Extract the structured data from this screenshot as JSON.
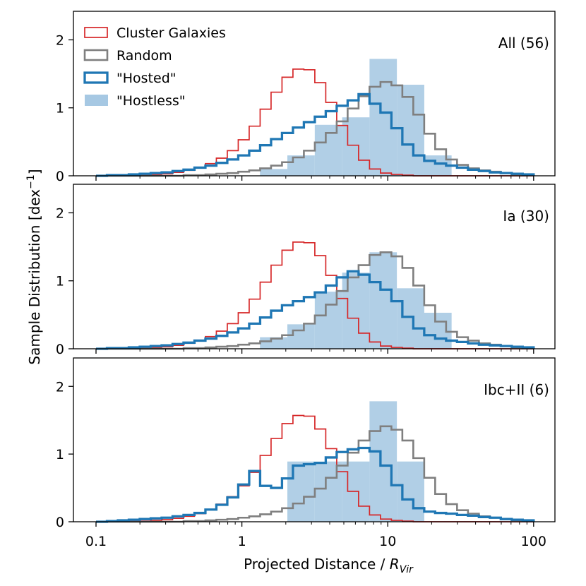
{
  "chart_data": {
    "type": "step-histogram",
    "xscale": "log",
    "xlim": [
      0.07,
      140
    ],
    "xlabel": "Projected Distance / ",
    "xlabel_sym": "R",
    "xlabel_sub": "Vir",
    "ylabel": "Sample Distribution [dex",
    "ylabel_sup": "−1",
    "ylabel_close": "]",
    "xticks": [
      0.1,
      1,
      10,
      100
    ],
    "xtick_labels": [
      "0.1",
      "1",
      "10",
      "100"
    ],
    "yticks": [
      0,
      1,
      2
    ],
    "ytick_labels": [
      "0",
      "1",
      "2"
    ],
    "ylim": [
      0,
      2.42
    ],
    "legend": {
      "position": "top-left",
      "entries": [
        {
          "label": "Cluster Galaxies",
          "style": "outline",
          "color": "#d62728"
        },
        {
          "label": "Random",
          "style": "outline",
          "color": "#7f7f7f"
        },
        {
          "label": "\"Hosted\"",
          "style": "outline-thick",
          "color": "#1f77b4"
        },
        {
          "label": "\"Hostless\"",
          "style": "fill",
          "color": "#a6c8e3"
        }
      ]
    },
    "colors": {
      "cluster": "#d62728",
      "random": "#7f7f7f",
      "hosted": "#1f77b4",
      "hostless": "#a6c8e3"
    },
    "panels": [
      {
        "label": "All (56)",
        "hostless": {
          "edges": [
            1.33,
            2.05,
            3.16,
            4.87,
            7.5,
            11.55,
            17.8,
            27.4
          ],
          "values": [
            0.1,
            0.3,
            0.75,
            0.86,
            1.72,
            1.34,
            0.3
          ]
        },
        "cluster": [
          0.0,
          0.0,
          0.0,
          0.01,
          0.01,
          0.02,
          0.03,
          0.05,
          0.08,
          0.12,
          0.18,
          0.26,
          0.37,
          0.53,
          0.73,
          0.98,
          1.23,
          1.45,
          1.57,
          1.56,
          1.37,
          1.08,
          0.74,
          0.45,
          0.23,
          0.1,
          0.04,
          0.02,
          0.01,
          0.0,
          0.0,
          0.0,
          0.0,
          0.0,
          0.0,
          0.0,
          0.0,
          0.0,
          0.0,
          0.0
        ],
        "random": [
          0.0,
          0.0,
          0.0,
          0.0,
          0.0,
          0.0,
          0.0,
          0.0,
          0.01,
          0.01,
          0.02,
          0.03,
          0.04,
          0.06,
          0.08,
          0.11,
          0.15,
          0.2,
          0.27,
          0.37,
          0.49,
          0.63,
          0.8,
          0.99,
          1.17,
          1.31,
          1.38,
          1.33,
          1.16,
          0.9,
          0.62,
          0.39,
          0.24,
          0.16,
          0.11,
          0.08,
          0.06,
          0.04,
          0.02,
          0.01
        ],
        "hosted": [
          0.0,
          0.01,
          0.01,
          0.02,
          0.03,
          0.04,
          0.05,
          0.07,
          0.09,
          0.12,
          0.15,
          0.19,
          0.24,
          0.3,
          0.37,
          0.45,
          0.54,
          0.63,
          0.71,
          0.79,
          0.87,
          0.95,
          1.03,
          1.11,
          1.2,
          1.06,
          0.93,
          0.7,
          0.46,
          0.3,
          0.22,
          0.18,
          0.15,
          0.12,
          0.09,
          0.07,
          0.05,
          0.04,
          0.03,
          0.02
        ]
      },
      {
        "label": "Ia (30)",
        "hostless": {
          "edges": [
            1.33,
            2.05,
            3.16,
            4.87,
            7.5,
            11.55,
            17.8,
            27.4
          ],
          "values": [
            0.17,
            0.36,
            0.84,
            1.12,
            1.42,
            0.89,
            0.53
          ]
        },
        "cluster": [
          0.0,
          0.0,
          0.0,
          0.01,
          0.01,
          0.02,
          0.03,
          0.05,
          0.08,
          0.12,
          0.18,
          0.26,
          0.37,
          0.53,
          0.73,
          0.98,
          1.23,
          1.45,
          1.57,
          1.56,
          1.37,
          1.08,
          0.74,
          0.45,
          0.23,
          0.1,
          0.04,
          0.02,
          0.01,
          0.0,
          0.0,
          0.0,
          0.0,
          0.0,
          0.0,
          0.0,
          0.0,
          0.0,
          0.0,
          0.0
        ],
        "random": [
          0.0,
          0.0,
          0.0,
          0.0,
          0.0,
          0.0,
          0.0,
          0.0,
          0.01,
          0.01,
          0.02,
          0.03,
          0.04,
          0.06,
          0.08,
          0.11,
          0.15,
          0.2,
          0.27,
          0.37,
          0.49,
          0.65,
          0.85,
          1.05,
          1.23,
          1.38,
          1.42,
          1.36,
          1.19,
          0.93,
          0.64,
          0.4,
          0.25,
          0.17,
          0.12,
          0.08,
          0.06,
          0.04,
          0.02,
          0.01
        ],
        "hosted": [
          0.0,
          0.01,
          0.01,
          0.02,
          0.03,
          0.04,
          0.05,
          0.07,
          0.09,
          0.12,
          0.15,
          0.19,
          0.24,
          0.3,
          0.37,
          0.46,
          0.56,
          0.64,
          0.7,
          0.76,
          0.83,
          0.93,
          1.05,
          1.14,
          1.09,
          0.98,
          0.87,
          0.7,
          0.47,
          0.3,
          0.2,
          0.15,
          0.12,
          0.1,
          0.08,
          0.06,
          0.05,
          0.04,
          0.03,
          0.02
        ]
      },
      {
        "label": "Ibc+II (6)",
        "hostless": {
          "edges": [
            2.05,
            3.16,
            4.87,
            7.5,
            11.55,
            17.8
          ],
          "values": [
            0.89,
            0.89,
            0.89,
            1.78,
            0.89
          ]
        },
        "cluster": [
          0.0,
          0.0,
          0.0,
          0.01,
          0.01,
          0.02,
          0.03,
          0.05,
          0.08,
          0.12,
          0.18,
          0.26,
          0.37,
          0.53,
          0.73,
          0.98,
          1.23,
          1.45,
          1.57,
          1.56,
          1.37,
          1.08,
          0.74,
          0.45,
          0.23,
          0.1,
          0.04,
          0.02,
          0.01,
          0.0,
          0.0,
          0.0,
          0.0,
          0.0,
          0.0,
          0.0,
          0.0,
          0.0,
          0.0,
          0.0
        ],
        "random": [
          0.0,
          0.0,
          0.0,
          0.0,
          0.0,
          0.0,
          0.0,
          0.0,
          0.01,
          0.01,
          0.02,
          0.03,
          0.04,
          0.06,
          0.08,
          0.11,
          0.15,
          0.2,
          0.27,
          0.37,
          0.49,
          0.65,
          0.83,
          1.02,
          1.2,
          1.34,
          1.41,
          1.36,
          1.2,
          0.94,
          0.65,
          0.41,
          0.26,
          0.17,
          0.12,
          0.08,
          0.06,
          0.04,
          0.02,
          0.01
        ],
        "hosted": [
          0.0,
          0.01,
          0.02,
          0.03,
          0.04,
          0.05,
          0.06,
          0.08,
          0.1,
          0.13,
          0.18,
          0.25,
          0.36,
          0.55,
          0.75,
          0.53,
          0.5,
          0.64,
          0.83,
          0.85,
          0.87,
          0.95,
          1.03,
          1.07,
          1.09,
          1.04,
          0.83,
          0.54,
          0.33,
          0.2,
          0.15,
          0.13,
          0.12,
          0.1,
          0.09,
          0.07,
          0.06,
          0.04,
          0.03,
          0.02
        ]
      }
    ]
  }
}
